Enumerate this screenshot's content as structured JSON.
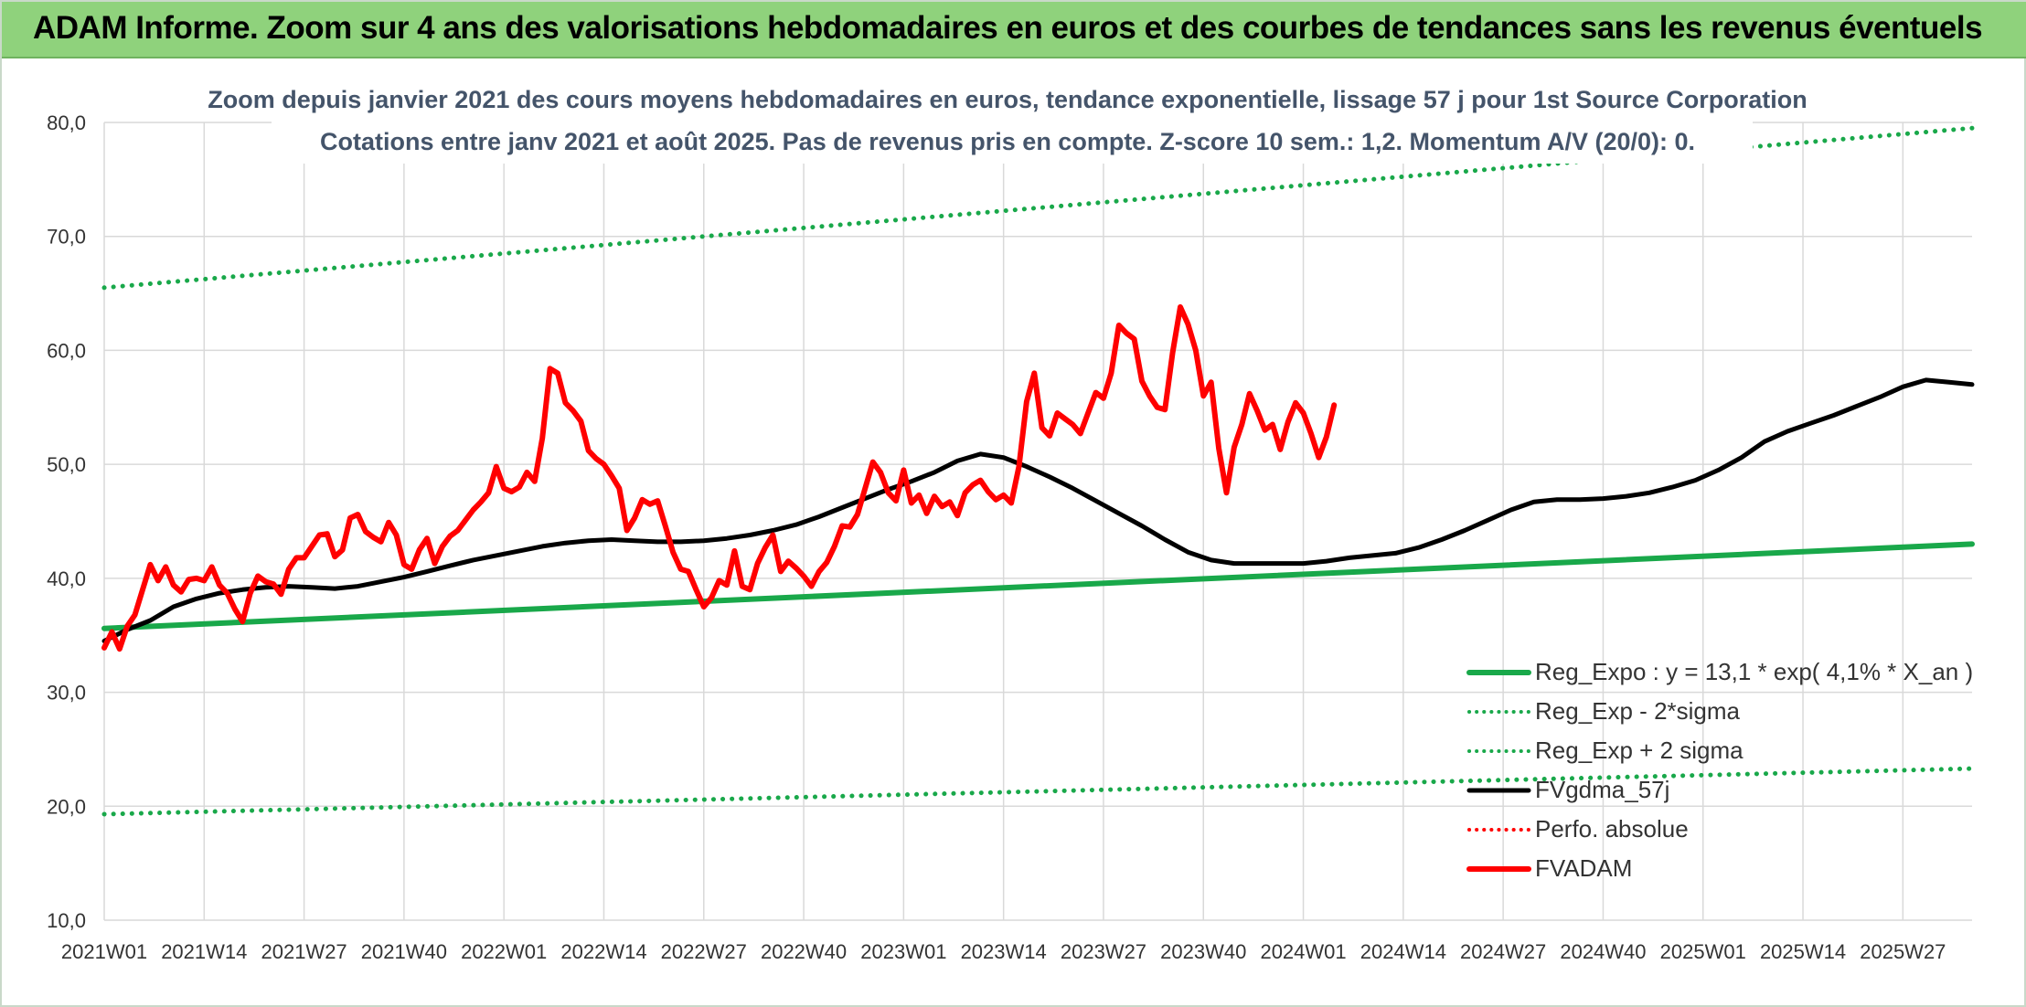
{
  "header": {
    "title": "ADAM Informe. Zoom sur 4 ans des valorisations hebdomadaires en euros et des courbes de tendances sans les revenus éventuels"
  },
  "colors": {
    "header_bg": "#8fd27c",
    "green": "#19a84a",
    "red": "#ff0000",
    "black": "#000000",
    "grid": "#d9d9d9",
    "subtitle": "#44546a"
  },
  "chart_data": {
    "type": "line",
    "subtitle_line1": "Zoom depuis janvier 2021 des cours moyens hebdomadaires en euros, tendance exponentielle, lissage 57 j pour 1st Source Corporation",
    "subtitle_line2": "Cotations entre janv 2021 et août 2025. Pas de revenus pris en compte. Z-score 10 sem.: 1,2. Momentum A/V (20/0): 0.",
    "ylim": [
      10,
      80
    ],
    "y_ticks": [
      "10,0",
      "20,0",
      "30,0",
      "40,0",
      "50,0",
      "60,0",
      "70,0",
      "80,0"
    ],
    "x_ticks": [
      "2021W01",
      "2021W14",
      "2021W27",
      "2021W40",
      "2022W01",
      "2022W14",
      "2022W27",
      "2022W40",
      "2023W01",
      "2023W14",
      "2023W27",
      "2023W40",
      "2024W01",
      "2024W14",
      "2024W27",
      "2024W40",
      "2025W01",
      "2025W14",
      "2025W27"
    ],
    "grid": true,
    "legend_position": "bottom-right",
    "series": [
      {
        "name": "Reg_Expo : y = 13,1 * exp( 4,1% *  X_an )",
        "style": "solid-thick",
        "color": "#19a84a",
        "points": [
          [
            0,
            35.6
          ],
          [
            243,
            43.0
          ]
        ]
      },
      {
        "name": "Reg_Exp - 2*sigma",
        "style": "dotted",
        "color": "#19a84a",
        "points": [
          [
            0,
            19.3
          ],
          [
            243,
            23.3
          ]
        ]
      },
      {
        "name": "Reg_Exp + 2 sigma",
        "style": "dotted",
        "color": "#19a84a",
        "points": [
          [
            0,
            65.5
          ],
          [
            243,
            79.5
          ]
        ]
      },
      {
        "name": "FVgdma_57j",
        "style": "solid",
        "color": "#000000",
        "points": [
          [
            0,
            34.5
          ],
          [
            3,
            35.5
          ],
          [
            6,
            36.3
          ],
          [
            9,
            37.5
          ],
          [
            12,
            38.2
          ],
          [
            15,
            38.7
          ],
          [
            18,
            39.0
          ],
          [
            21,
            39.2
          ],
          [
            24,
            39.3
          ],
          [
            27,
            39.2
          ],
          [
            30,
            39.1
          ],
          [
            33,
            39.3
          ],
          [
            36,
            39.7
          ],
          [
            39,
            40.1
          ],
          [
            42,
            40.6
          ],
          [
            45,
            41.1
          ],
          [
            48,
            41.6
          ],
          [
            51,
            42.0
          ],
          [
            54,
            42.4
          ],
          [
            57,
            42.8
          ],
          [
            60,
            43.1
          ],
          [
            63,
            43.3
          ],
          [
            66,
            43.4
          ],
          [
            69,
            43.3
          ],
          [
            72,
            43.2
          ],
          [
            75,
            43.2
          ],
          [
            78,
            43.3
          ],
          [
            81,
            43.5
          ],
          [
            84,
            43.8
          ],
          [
            87,
            44.2
          ],
          [
            90,
            44.7
          ],
          [
            93,
            45.4
          ],
          [
            96,
            46.2
          ],
          [
            99,
            47.0
          ],
          [
            102,
            47.8
          ],
          [
            105,
            48.5
          ],
          [
            108,
            49.3
          ],
          [
            111,
            50.3
          ],
          [
            114,
            50.9
          ],
          [
            117,
            50.6
          ],
          [
            120,
            49.8
          ],
          [
            123,
            48.9
          ],
          [
            126,
            47.9
          ],
          [
            129,
            46.8
          ],
          [
            132,
            45.7
          ],
          [
            135,
            44.6
          ],
          [
            138,
            43.4
          ],
          [
            141,
            42.3
          ],
          [
            144,
            41.6
          ],
          [
            147,
            41.3
          ],
          [
            150,
            41.3
          ],
          [
            153,
            41.3
          ],
          [
            156,
            41.3
          ],
          [
            159,
            41.5
          ],
          [
            162,
            41.8
          ],
          [
            165,
            42.0
          ],
          [
            168,
            42.2
          ],
          [
            171,
            42.7
          ],
          [
            174,
            43.4
          ],
          [
            177,
            44.2
          ],
          [
            180,
            45.1
          ],
          [
            183,
            46.0
          ],
          [
            186,
            46.7
          ],
          [
            189,
            46.9
          ],
          [
            192,
            46.9
          ],
          [
            195,
            47.0
          ],
          [
            198,
            47.2
          ],
          [
            201,
            47.5
          ],
          [
            204,
            48.0
          ],
          [
            207,
            48.6
          ],
          [
            210,
            49.5
          ],
          [
            213,
            50.6
          ],
          [
            216,
            52.0
          ],
          [
            219,
            52.9
          ],
          [
            222,
            53.6
          ],
          [
            225,
            54.3
          ],
          [
            228,
            55.1
          ],
          [
            231,
            55.9
          ],
          [
            234,
            56.8
          ],
          [
            237,
            57.4
          ],
          [
            240,
            57.2
          ],
          [
            243,
            57.0
          ]
        ]
      },
      {
        "name": "Perfo. absolue",
        "style": "dotted",
        "color": "#ff0000",
        "points": []
      },
      {
        "name": "FVADAM",
        "style": "solid-thick",
        "color": "#ff0000",
        "points": [
          [
            0,
            33.9
          ],
          [
            1,
            35.3
          ],
          [
            2,
            33.8
          ],
          [
            3,
            35.8
          ],
          [
            4,
            36.8
          ],
          [
            5,
            39.0
          ],
          [
            6,
            41.2
          ],
          [
            7,
            39.8
          ],
          [
            8,
            41.0
          ],
          [
            9,
            39.4
          ],
          [
            10,
            38.8
          ],
          [
            11,
            39.9
          ],
          [
            12,
            40.0
          ],
          [
            13,
            39.8
          ],
          [
            14,
            41.0
          ],
          [
            15,
            39.4
          ],
          [
            16,
            38.7
          ],
          [
            17,
            37.3
          ],
          [
            18,
            36.2
          ],
          [
            19,
            38.7
          ],
          [
            20,
            40.2
          ],
          [
            21,
            39.7
          ],
          [
            22,
            39.5
          ],
          [
            23,
            38.6
          ],
          [
            24,
            40.8
          ],
          [
            25,
            41.8
          ],
          [
            26,
            41.8
          ],
          [
            27,
            42.8
          ],
          [
            28,
            43.8
          ],
          [
            29,
            43.9
          ],
          [
            30,
            41.9
          ],
          [
            31,
            42.5
          ],
          [
            32,
            45.3
          ],
          [
            33,
            45.6
          ],
          [
            34,
            44.1
          ],
          [
            35,
            43.6
          ],
          [
            36,
            43.2
          ],
          [
            37,
            44.9
          ],
          [
            38,
            43.8
          ],
          [
            39,
            41.2
          ],
          [
            40,
            40.8
          ],
          [
            41,
            42.5
          ],
          [
            42,
            43.5
          ],
          [
            43,
            41.3
          ],
          [
            44,
            42.8
          ],
          [
            45,
            43.7
          ],
          [
            46,
            44.2
          ],
          [
            47,
            45.1
          ],
          [
            48,
            46.0
          ],
          [
            49,
            46.7
          ],
          [
            50,
            47.5
          ],
          [
            51,
            49.8
          ],
          [
            52,
            47.9
          ],
          [
            53,
            47.6
          ],
          [
            54,
            48.0
          ],
          [
            55,
            49.3
          ],
          [
            56,
            48.5
          ],
          [
            57,
            52.3
          ],
          [
            58,
            58.4
          ],
          [
            59,
            58.0
          ],
          [
            60,
            55.4
          ],
          [
            61,
            54.7
          ],
          [
            62,
            53.8
          ],
          [
            63,
            51.2
          ],
          [
            64,
            50.5
          ],
          [
            65,
            50.0
          ],
          [
            66,
            49.0
          ],
          [
            67,
            47.9
          ],
          [
            68,
            44.2
          ],
          [
            69,
            45.3
          ],
          [
            70,
            46.9
          ],
          [
            71,
            46.5
          ],
          [
            72,
            46.8
          ],
          [
            73,
            44.6
          ],
          [
            74,
            42.3
          ],
          [
            75,
            40.8
          ],
          [
            76,
            40.6
          ],
          [
            77,
            39.0
          ],
          [
            78,
            37.5
          ],
          [
            79,
            38.3
          ],
          [
            80,
            39.8
          ],
          [
            81,
            39.4
          ],
          [
            82,
            42.4
          ],
          [
            83,
            39.3
          ],
          [
            84,
            39.0
          ],
          [
            85,
            41.3
          ],
          [
            86,
            42.7
          ],
          [
            87,
            43.8
          ],
          [
            88,
            40.6
          ],
          [
            89,
            41.5
          ],
          [
            90,
            40.9
          ],
          [
            91,
            40.2
          ],
          [
            92,
            39.3
          ],
          [
            93,
            40.6
          ],
          [
            94,
            41.4
          ],
          [
            95,
            42.8
          ],
          [
            96,
            44.6
          ],
          [
            97,
            44.5
          ],
          [
            98,
            45.6
          ],
          [
            99,
            47.9
          ],
          [
            100,
            50.2
          ],
          [
            101,
            49.3
          ],
          [
            102,
            47.5
          ],
          [
            103,
            46.8
          ],
          [
            104,
            49.5
          ],
          [
            105,
            46.6
          ],
          [
            106,
            47.3
          ],
          [
            107,
            45.7
          ],
          [
            108,
            47.2
          ],
          [
            109,
            46.3
          ],
          [
            110,
            46.7
          ],
          [
            111,
            45.5
          ],
          [
            112,
            47.5
          ],
          [
            113,
            48.2
          ],
          [
            114,
            48.6
          ],
          [
            115,
            47.6
          ],
          [
            116,
            46.9
          ],
          [
            117,
            47.3
          ],
          [
            118,
            46.6
          ],
          [
            119,
            49.8
          ],
          [
            120,
            55.5
          ],
          [
            121,
            58.0
          ],
          [
            122,
            53.2
          ],
          [
            123,
            52.5
          ],
          [
            124,
            54.5
          ],
          [
            125,
            54.0
          ],
          [
            126,
            53.5
          ],
          [
            127,
            52.7
          ],
          [
            128,
            54.5
          ],
          [
            129,
            56.3
          ],
          [
            130,
            55.8
          ],
          [
            131,
            58.0
          ],
          [
            132,
            62.2
          ],
          [
            133,
            61.5
          ],
          [
            134,
            61.0
          ],
          [
            135,
            57.3
          ],
          [
            136,
            56.0
          ],
          [
            137,
            55.0
          ],
          [
            138,
            54.8
          ],
          [
            139,
            59.8
          ],
          [
            140,
            63.8
          ],
          [
            141,
            62.3
          ],
          [
            142,
            60.0
          ],
          [
            143,
            56.0
          ],
          [
            144,
            57.2
          ],
          [
            145,
            51.4
          ],
          [
            146,
            47.5
          ],
          [
            147,
            51.5
          ],
          [
            148,
            53.5
          ],
          [
            149,
            56.2
          ],
          [
            150,
            54.7
          ],
          [
            151,
            53.0
          ],
          [
            152,
            53.5
          ],
          [
            153,
            51.3
          ],
          [
            154,
            53.7
          ],
          [
            155,
            55.4
          ],
          [
            156,
            54.5
          ],
          [
            157,
            52.7
          ],
          [
            158,
            50.6
          ],
          [
            159,
            52.4
          ],
          [
            160,
            55.2
          ]
        ]
      }
    ]
  }
}
